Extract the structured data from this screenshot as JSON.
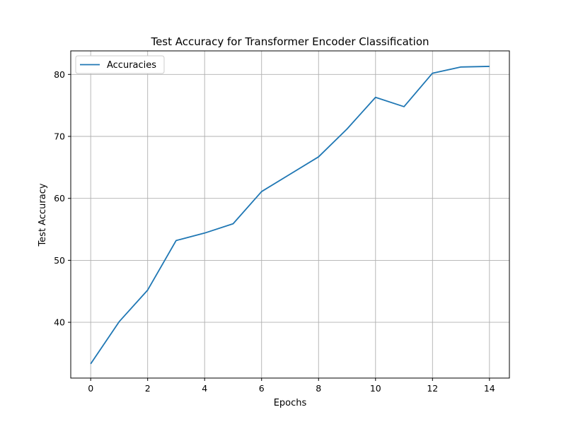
{
  "chart_data": {
    "type": "line",
    "title": "Test Accuracy for Transformer Encoder Classification",
    "xlabel": "Epochs",
    "ylabel": "Test Accuracy",
    "xlim": [
      -0.7,
      14.7
    ],
    "ylim": [
      31.0,
      83.8
    ],
    "xticks": [
      0,
      2,
      4,
      6,
      8,
      10,
      12,
      14
    ],
    "yticks": [
      40,
      50,
      60,
      70,
      80
    ],
    "grid": true,
    "legend_position": "upper-left",
    "series": [
      {
        "name": "Accuracies",
        "color": "#1f77b4",
        "x": [
          0,
          1,
          2,
          3,
          4,
          5,
          6,
          7,
          8,
          9,
          10,
          11,
          12,
          13,
          14
        ],
        "y": [
          33.3,
          40.1,
          45.2,
          53.2,
          54.4,
          55.9,
          61.1,
          63.9,
          66.7,
          71.2,
          76.3,
          74.8,
          80.2,
          81.2,
          81.3
        ]
      }
    ]
  }
}
